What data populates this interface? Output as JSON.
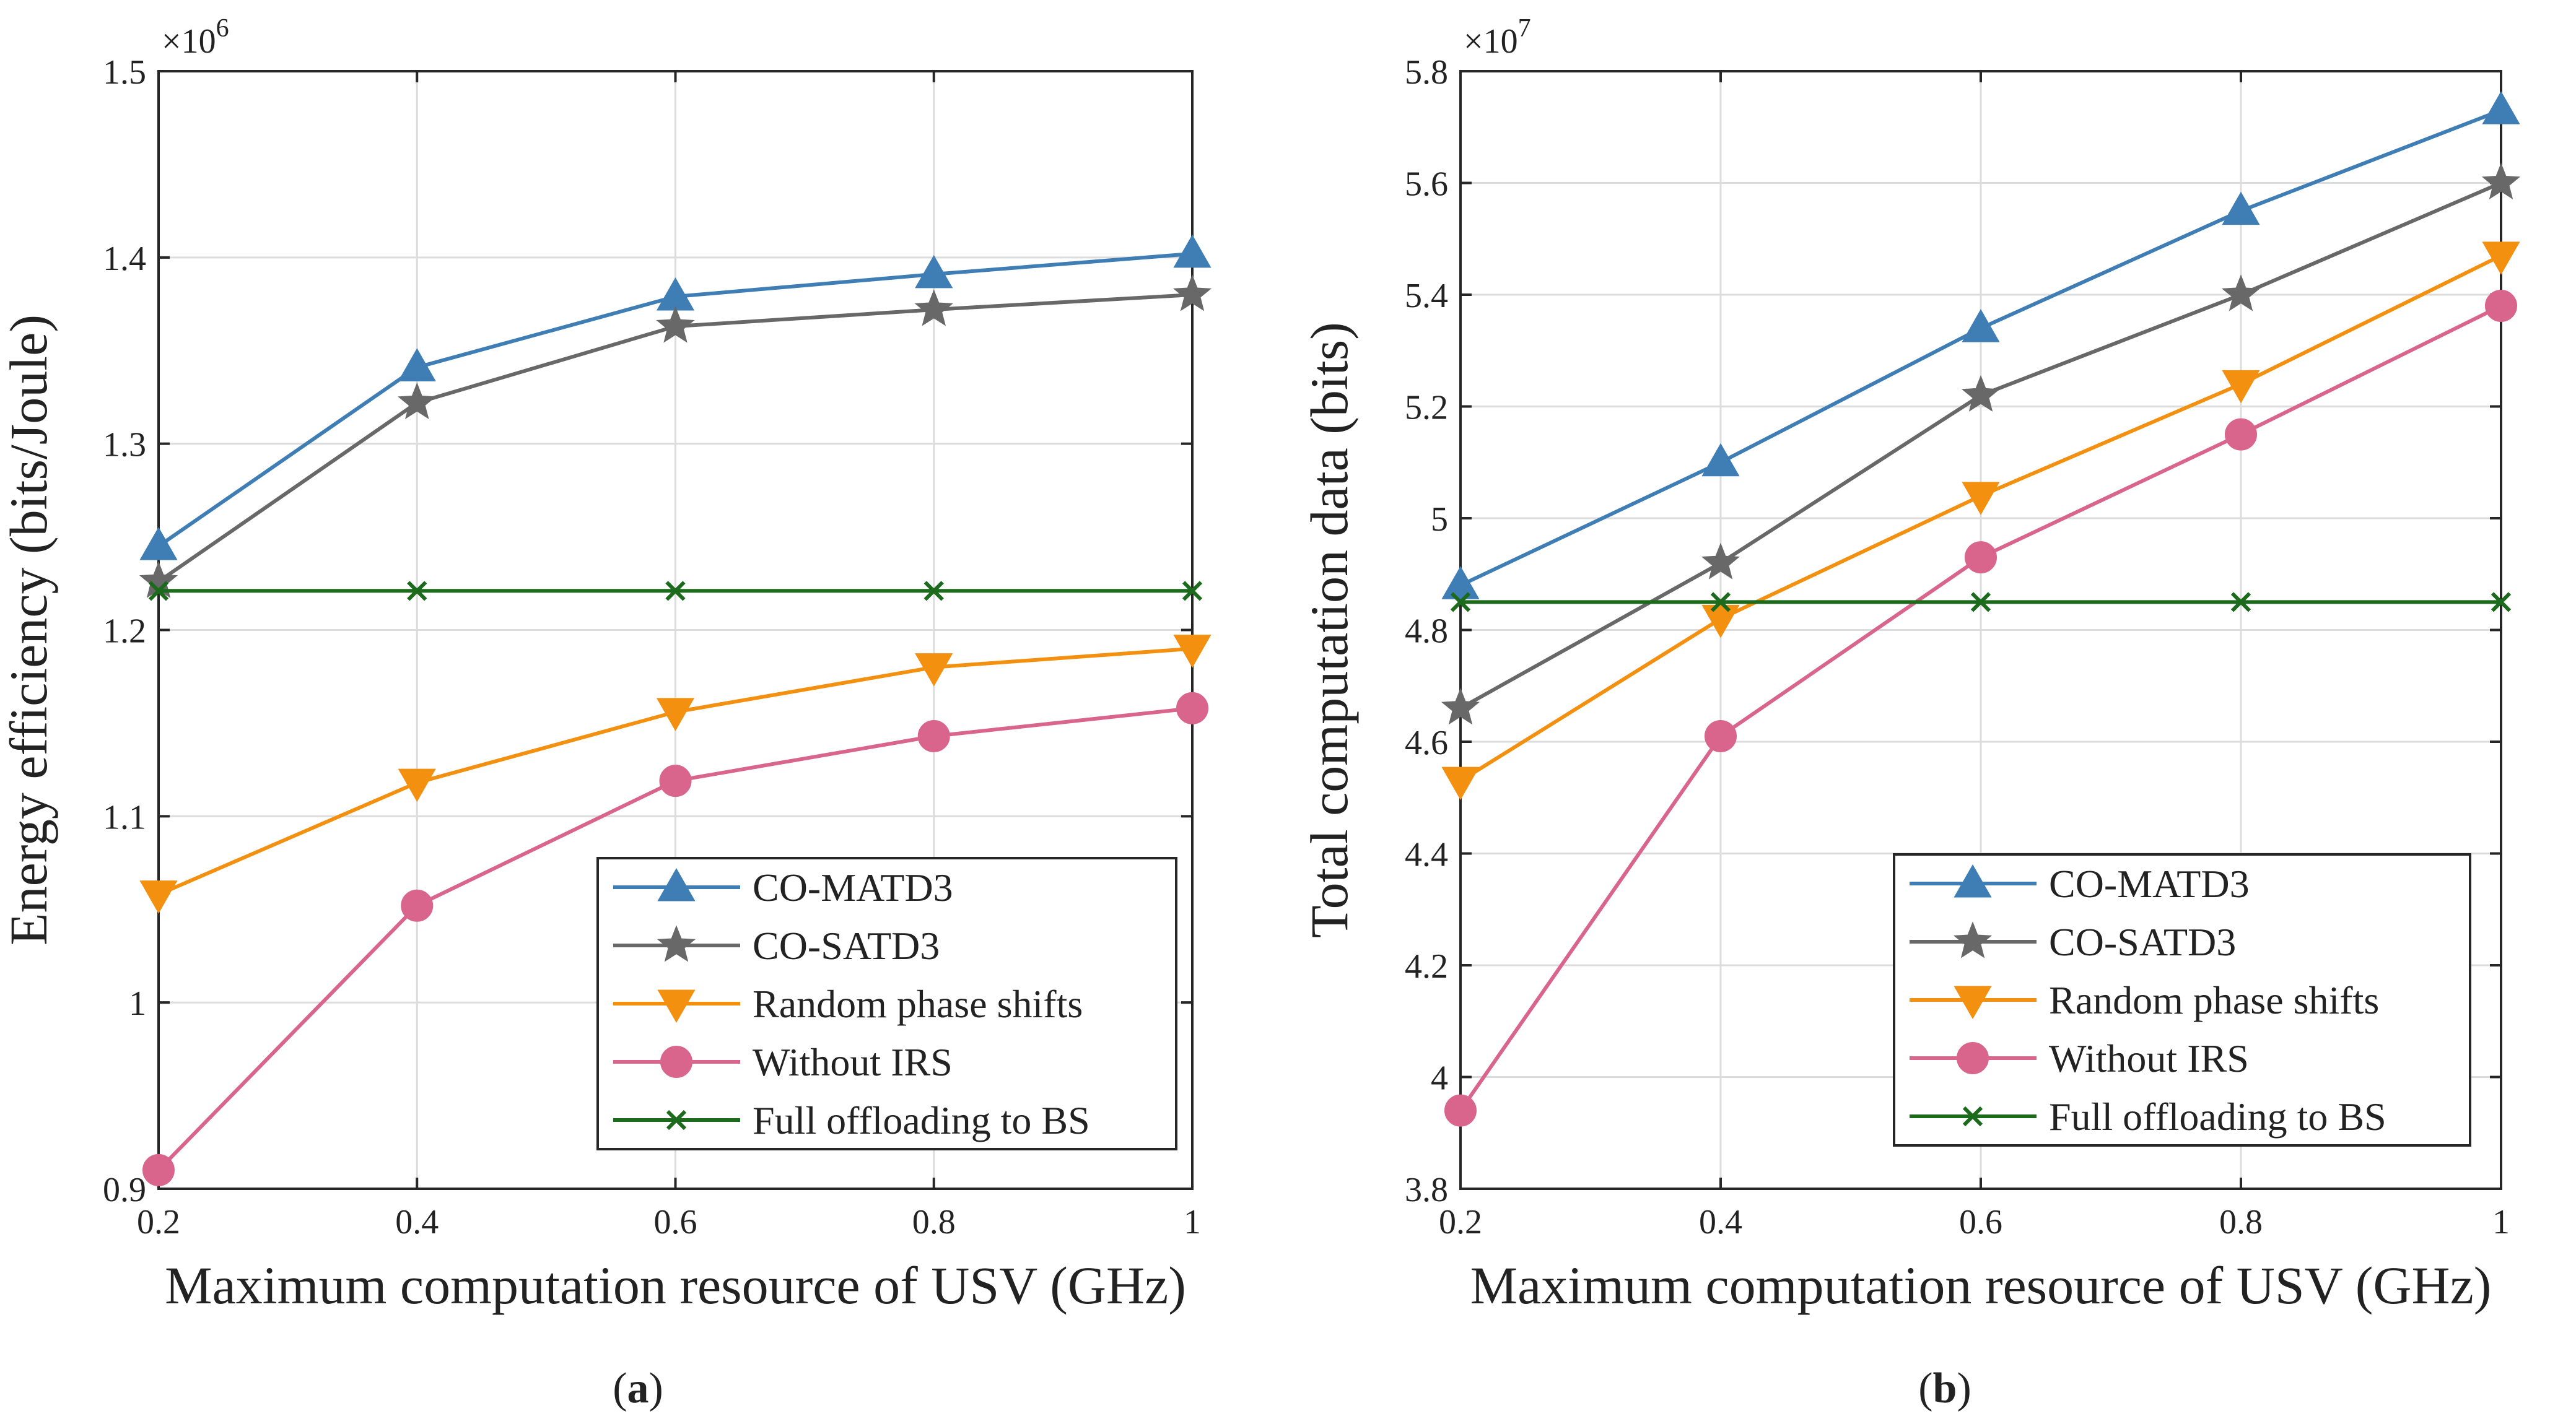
{
  "figure": {
    "caption_a": "a",
    "caption_b": "b"
  },
  "series_style": [
    {
      "name": "CO-MATD3",
      "color": "#3f7db5",
      "marker": "triangle-up"
    },
    {
      "name": "CO-SATD3",
      "color": "#686868",
      "marker": "star"
    },
    {
      "name": "Random phase shifts",
      "color": "#f4900f",
      "marker": "triangle-down"
    },
    {
      "name": "Without IRS",
      "color": "#d9648c",
      "marker": "circle"
    },
    {
      "name": "Full offloading to BS",
      "color": "#1c6b1c",
      "marker": "x"
    }
  ],
  "chart_data": [
    {
      "type": "line",
      "caption": "(a)",
      "title": "",
      "xlabel": "Maximum computation resource of USV (GHz)",
      "ylabel": "Energy efficiency (bits/Joule)",
      "y_multiplier": "×10",
      "y_multiplier_exp": "6",
      "x": [
        0.2,
        0.4,
        0.6,
        0.8,
        1
      ],
      "x_tick_labels": [
        "0.2",
        "0.4",
        "0.6",
        "0.8",
        "1"
      ],
      "xlim": [
        0.2,
        1
      ],
      "ylim": [
        0.9,
        1.5
      ],
      "y_ticks": [
        0.9,
        1.0,
        1.1,
        1.2,
        1.3,
        1.4,
        1.5
      ],
      "y_tick_labels": [
        "0.9",
        "1",
        "1.1",
        "1.2",
        "1.3",
        "1.4",
        "1.5"
      ],
      "grid": true,
      "legend_position": "bottom-right",
      "series": [
        {
          "name": "CO-MATD3",
          "values": [
            1.245,
            1.341,
            1.379,
            1.391,
            1.402
          ]
        },
        {
          "name": "CO-SATD3",
          "values": [
            1.226,
            1.322,
            1.363,
            1.372,
            1.38
          ]
        },
        {
          "name": "Random phase shifts",
          "values": [
            1.058,
            1.118,
            1.156,
            1.18,
            1.19
          ]
        },
        {
          "name": "Without IRS",
          "values": [
            0.91,
            1.052,
            1.119,
            1.143,
            1.158
          ]
        },
        {
          "name": "Full offloading to BS",
          "values": [
            1.221,
            1.221,
            1.221,
            1.221,
            1.221
          ]
        }
      ]
    },
    {
      "type": "line",
      "caption": "(b)",
      "title": "",
      "xlabel": "Maximum computation resource of USV (GHz)",
      "ylabel": "Total computation data (bits)",
      "y_multiplier": "×10",
      "y_multiplier_exp": "7",
      "x": [
        0.2,
        0.4,
        0.6,
        0.8,
        1
      ],
      "x_tick_labels": [
        "0.2",
        "0.4",
        "0.6",
        "0.8",
        "1"
      ],
      "xlim": [
        0.2,
        1
      ],
      "ylim": [
        3.8,
        5.8
      ],
      "y_ticks": [
        3.8,
        4.0,
        4.2,
        4.4,
        4.6,
        4.8,
        5.0,
        5.2,
        5.4,
        5.6,
        5.8
      ],
      "y_tick_labels": [
        "3.8",
        "4",
        "4.2",
        "4.4",
        "4.6",
        "4.8",
        "5",
        "5.2",
        "5.4",
        "5.6",
        "5.8"
      ],
      "grid": true,
      "legend_position": "bottom-right",
      "series": [
        {
          "name": "CO-MATD3",
          "values": [
            4.88,
            5.1,
            5.34,
            5.55,
            5.73
          ]
        },
        {
          "name": "CO-SATD3",
          "values": [
            4.66,
            4.92,
            5.22,
            5.4,
            5.6
          ]
        },
        {
          "name": "Random phase shifts",
          "values": [
            4.53,
            4.82,
            5.04,
            5.24,
            5.47
          ]
        },
        {
          "name": "Without IRS",
          "values": [
            3.94,
            4.61,
            4.93,
            5.15,
            5.38
          ]
        },
        {
          "name": "Full offloading to BS",
          "values": [
            4.85,
            4.85,
            4.85,
            4.85,
            4.85
          ]
        }
      ]
    }
  ]
}
